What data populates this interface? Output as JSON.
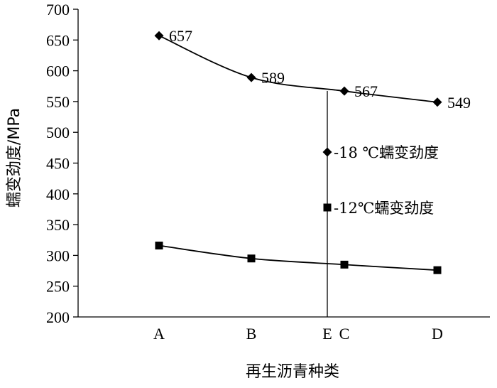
{
  "chart_data": {
    "type": "line",
    "title": "",
    "xlabel": "再生沥青种类",
    "ylabel": "蠕变劲度/MPa",
    "categories": [
      "A",
      "B",
      "C",
      "D"
    ],
    "ylim": [
      200,
      700
    ],
    "yticks": [
      200,
      250,
      300,
      350,
      400,
      450,
      500,
      550,
      600,
      650,
      700
    ],
    "grid": false,
    "legend": "inside-right",
    "series": [
      {
        "name": "-18 ℃蠕变劲度",
        "marker": "diamond",
        "values": [
          657,
          589,
          567,
          549
        ],
        "data_labels": [
          "657",
          "589",
          "567",
          "549"
        ]
      },
      {
        "name": "-12℃蠕变劲度",
        "marker": "square",
        "values": [
          316,
          295,
          285,
          276
        ],
        "data_labels": []
      }
    ],
    "vertical_line": {
      "position_between": [
        "B",
        "C"
      ],
      "label": "E"
    }
  }
}
